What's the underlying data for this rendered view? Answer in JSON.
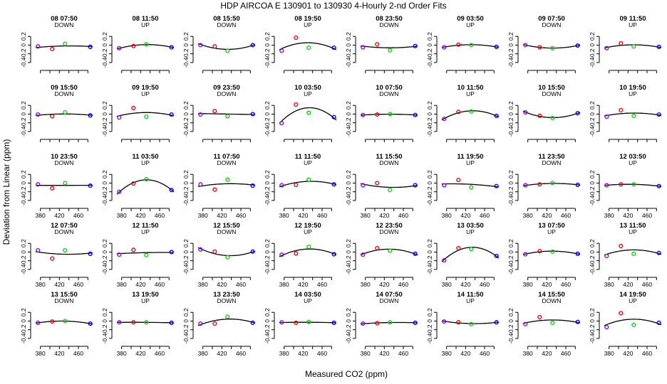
{
  "figure": {
    "title": "HDP   AIRCOA E   130901 to 130930   4-Hourly 2-nd Order Fits",
    "xlabel": "Measured CO2 (ppm)",
    "ylabel": "Deviation from Linear (ppm)"
  },
  "chart_data": {
    "type": "scatter",
    "layout": "small multiples, 5 rows x 8 columns",
    "xlim": [
      370,
      490
    ],
    "ylim": [
      -0.5,
      0.4
    ],
    "xticks": [
      380,
      420,
      460
    ],
    "xtick_labels": [
      "380",
      "420",
      "460"
    ],
    "minor_xticks": [
      400,
      440,
      480
    ],
    "yticks": [
      -0.4,
      -0.2,
      0,
      0.2
    ],
    "ytick_labels": [
      "-0.4",
      "-0.2",
      "0",
      "0.2"
    ],
    "xtick_label_rows": [
      3,
      4,
      5
    ],
    "point_x": [
      375,
      405,
      432,
      485
    ],
    "point_colors": [
      "#9900ff",
      "#ff0000",
      "#00dd00",
      "#0000ff"
    ],
    "marker": "open-circle",
    "fit_line_color": "#000000",
    "panels": [
      {
        "title": "08 07:50",
        "direction": "DOWN",
        "y": [
          -0.03,
          -0.09,
          0.03,
          -0.04
        ]
      },
      {
        "title": "08 11:50",
        "direction": "UP",
        "y": [
          -0.07,
          -0.02,
          0.02,
          -0.05
        ]
      },
      {
        "title": "08 15:50",
        "direction": "DOWN",
        "y": [
          0.0,
          -0.03,
          -0.13,
          0.0
        ]
      },
      {
        "title": "08 19:50",
        "direction": "UP",
        "y": [
          -0.13,
          0.17,
          -0.06,
          -0.06
        ]
      },
      {
        "title": "08 23:50",
        "direction": "DOWN",
        "y": [
          -0.05,
          0.02,
          -0.12,
          -0.02
        ]
      },
      {
        "title": "09 03:50",
        "direction": "UP",
        "y": [
          -0.05,
          0.01,
          0.0,
          -0.04
        ]
      },
      {
        "title": "09 07:50",
        "direction": "DOWN",
        "y": [
          0.0,
          -0.05,
          -0.07,
          -0.01
        ]
      },
      {
        "title": "09 11:50",
        "direction": "UP",
        "y": [
          -0.07,
          0.04,
          -0.03,
          -0.04
        ]
      },
      {
        "title": "09 15:50",
        "direction": "DOWN",
        "y": [
          -0.01,
          -0.05,
          0.04,
          -0.03
        ]
      },
      {
        "title": "09 19:50",
        "direction": "UP",
        "y": [
          -0.08,
          0.14,
          -0.06,
          -0.01
        ]
      },
      {
        "title": "09 23:50",
        "direction": "DOWN",
        "y": [
          -0.01,
          0.07,
          -0.05,
          0.0
        ]
      },
      {
        "title": "10 03:50",
        "direction": "UP",
        "y": [
          -0.21,
          0.22,
          0.03,
          -0.07
        ]
      },
      {
        "title": "10 07:50",
        "direction": "DOWN",
        "y": [
          -0.02,
          -0.01,
          0.0,
          -0.02
        ]
      },
      {
        "title": "10 11:50",
        "direction": "UP",
        "y": [
          -0.11,
          0.05,
          0.06,
          -0.04
        ]
      },
      {
        "title": "10 15:50",
        "direction": "DOWN",
        "y": [
          0.04,
          -0.04,
          -0.09,
          0.02
        ]
      },
      {
        "title": "10 19:50",
        "direction": "UP",
        "y": [
          -0.06,
          0.09,
          -0.04,
          -0.01
        ]
      },
      {
        "title": "10 23:50",
        "direction": "DOWN",
        "y": [
          -0.03,
          -0.12,
          0.0,
          -0.06
        ]
      },
      {
        "title": "11 03:50",
        "direction": "UP",
        "y": [
          -0.2,
          -0.01,
          0.09,
          -0.16
        ]
      },
      {
        "title": "11 07:50",
        "direction": "DOWN",
        "y": [
          -0.03,
          -0.15,
          0.08,
          -0.06
        ]
      },
      {
        "title": "11 11:50",
        "direction": "UP",
        "y": [
          -0.05,
          -0.04,
          0.08,
          -0.03
        ]
      },
      {
        "title": "11 15:50",
        "direction": "DOWN",
        "y": [
          -0.05,
          0.0,
          -0.16,
          -0.05
        ]
      },
      {
        "title": "11 19:50",
        "direction": "UP",
        "y": [
          -0.05,
          0.07,
          -0.1,
          -0.07
        ]
      },
      {
        "title": "11 23:50",
        "direction": "DOWN",
        "y": [
          -0.05,
          -0.03,
          0.0,
          -0.04
        ]
      },
      {
        "title": "12 03:50",
        "direction": "UP",
        "y": [
          -0.05,
          -0.03,
          -0.03,
          -0.07
        ]
      },
      {
        "title": "12 07:50",
        "direction": "DOWN",
        "y": [
          0.04,
          -0.15,
          0.04,
          -0.04
        ]
      },
      {
        "title": "12 11:50",
        "direction": "UP",
        "y": [
          -0.06,
          0.05,
          -0.07,
          0.0
        ]
      },
      {
        "title": "12 15:50",
        "direction": "DOWN",
        "y": [
          0.06,
          0.01,
          -0.12,
          0.01
        ]
      },
      {
        "title": "12 19:50",
        "direction": "UP",
        "y": [
          -0.06,
          -0.03,
          0.12,
          -0.05
        ]
      },
      {
        "title": "12 23:50",
        "direction": "DOWN",
        "y": [
          -0.06,
          0.09,
          0.03,
          -0.04
        ]
      },
      {
        "title": "13 03:50",
        "direction": "UP",
        "y": [
          -0.19,
          0.09,
          0.07,
          -0.09
        ]
      },
      {
        "title": "13 07:50",
        "direction": "UP",
        "y": [
          -0.05,
          0.02,
          0.01,
          -0.04
        ]
      },
      {
        "title": "13 11:50",
        "direction": "UP",
        "y": [
          -0.09,
          0.14,
          -0.04,
          -0.02
        ]
      },
      {
        "title": "13 15:50",
        "direction": "DOWN",
        "y": [
          -0.04,
          -0.01,
          0.0,
          -0.06
        ]
      },
      {
        "title": "13 19:50",
        "direction": "UP",
        "y": [
          -0.03,
          -0.03,
          -0.03,
          -0.04
        ]
      },
      {
        "title": "13 23:50",
        "direction": "DOWN",
        "y": [
          -0.06,
          -0.06,
          0.1,
          -0.04
        ]
      },
      {
        "title": "14 03:50",
        "direction": "UP",
        "y": [
          -0.03,
          -0.04,
          -0.02,
          -0.04
        ]
      },
      {
        "title": "14 07:50",
        "direction": "DOWN",
        "y": [
          -0.06,
          -0.05,
          -0.03,
          -0.04
        ]
      },
      {
        "title": "14 11:50",
        "direction": "UP",
        "y": [
          -0.01,
          -0.03,
          -0.07,
          -0.03
        ]
      },
      {
        "title": "14 15:50",
        "direction": "DOWN",
        "y": [
          -0.07,
          0.09,
          -0.04,
          -0.02
        ]
      },
      {
        "title": "14 19:50",
        "direction": "UP",
        "y": [
          -0.14,
          0.18,
          -0.09,
          -0.04
        ]
      }
    ]
  }
}
